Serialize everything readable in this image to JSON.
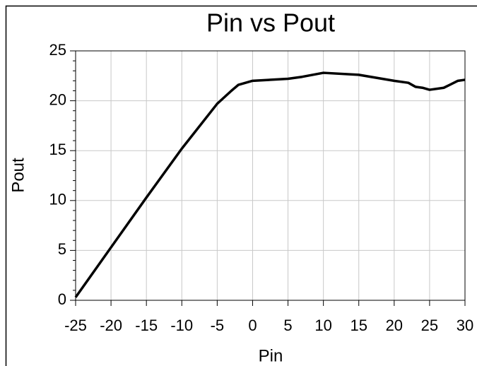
{
  "chart_data": {
    "type": "line",
    "title": "Pin vs Pout",
    "x_label": "Pin",
    "y_label": "Pout",
    "x": [
      -25,
      -20,
      -15,
      -10,
      -5,
      -3,
      -2,
      0,
      5,
      7,
      10,
      15,
      20,
      22,
      23,
      24,
      25,
      27,
      29,
      30
    ],
    "series": [
      {
        "name": "Pout",
        "color": "#000000",
        "values": [
          0.3,
          5.3,
          10.3,
          15.2,
          19.7,
          21.0,
          21.6,
          22.0,
          22.2,
          22.4,
          22.8,
          22.6,
          22.0,
          21.8,
          21.4,
          21.3,
          21.1,
          21.3,
          22.0,
          22.1
        ]
      }
    ],
    "xlim": [
      -25,
      30
    ],
    "xticks": [
      -25,
      -20,
      -15,
      -10,
      -5,
      0,
      5,
      10,
      15,
      20,
      25,
      30
    ],
    "ylim": [
      0,
      25
    ],
    "yticks": [
      0,
      5,
      10,
      15,
      20,
      25
    ],
    "grid": true
  }
}
